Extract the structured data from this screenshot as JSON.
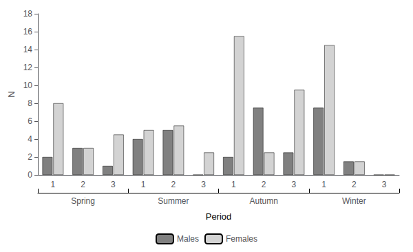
{
  "chart_data": {
    "type": "bar",
    "categories": [
      "1",
      "2",
      "3",
      "1",
      "2",
      "3",
      "1",
      "2",
      "3",
      "1",
      "2",
      "3"
    ],
    "groups": [
      "Spring",
      "Summer",
      "Autumn",
      "Winter"
    ],
    "series": [
      {
        "name": "Males",
        "color": "#808080",
        "values": [
          2,
          3,
          1,
          4,
          5,
          0,
          2,
          7.5,
          2.5,
          7.5,
          1.5,
          0
        ]
      },
      {
        "name": "Females",
        "color": "#d3d3d3",
        "values": [
          8,
          3,
          4.5,
          5,
          5.5,
          2.5,
          15.5,
          2.5,
          9.5,
          14.5,
          1.5,
          0
        ]
      }
    ],
    "xlabel": "Period",
    "ylabel": "N",
    "ylim": [
      0,
      18
    ],
    "yticks": [
      0,
      2,
      4,
      6,
      8,
      10,
      12,
      14,
      16,
      18
    ],
    "grid": false,
    "legend": "bottom"
  }
}
